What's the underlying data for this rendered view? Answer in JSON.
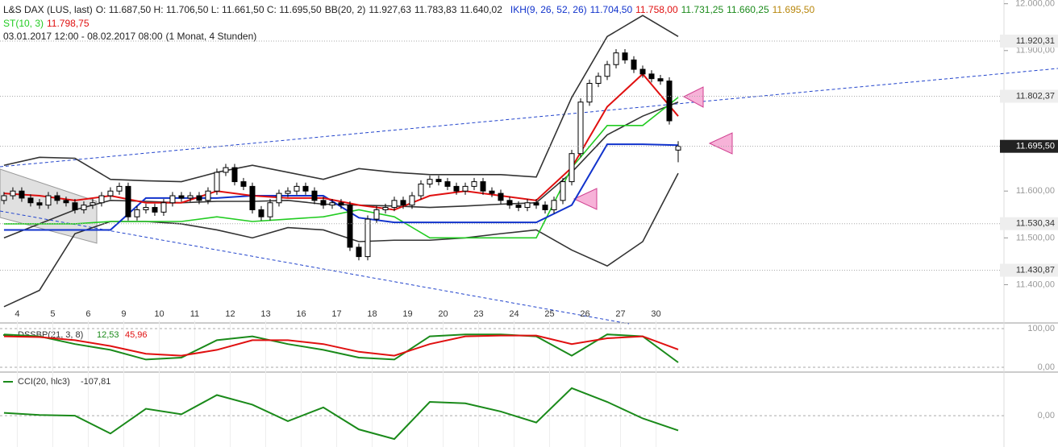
{
  "header": {
    "instrument": "L&S DAX (LUS, last)",
    "ohlc": "O: 11.687,50  H: 11.706,50  L: 11.661,50  C: 11.695,50",
    "bb_label": "BB(20, 2)",
    "bb_values": [
      "11.927,63",
      "11.783,83",
      "11.640,02"
    ],
    "ikh_label": "IKH(9, 26, 52, 26)",
    "ikh_values": [
      "11.704,50",
      "11.758,00",
      "11.731,25",
      "11.660,25",
      "11.695,50"
    ],
    "st_label": "ST(10, 3)",
    "st_value": "11.798,75",
    "range": "03.01.2017 12:00 - 08.02.2017 08:00",
    "period": "(1 Monat, 4 Stunden)"
  },
  "chart_data": [
    {
      "type": "candlestick",
      "xlim": [
        -0.45,
        112.27
      ],
      "ylim": [
        11320,
        12008
      ],
      "xticks": [
        {
          "value": 1.5,
          "label": "4"
        },
        {
          "value": 5.5,
          "label": "5"
        },
        {
          "value": 9.5,
          "label": "6"
        },
        {
          "value": 13.5,
          "label": "9"
        },
        {
          "value": 17.5,
          "label": "10"
        },
        {
          "value": 21.5,
          "label": "11"
        },
        {
          "value": 25.5,
          "label": "12"
        },
        {
          "value": 29.5,
          "label": "13"
        },
        {
          "value": 33.5,
          "label": "16"
        },
        {
          "value": 37.5,
          "label": "17"
        },
        {
          "value": 41.5,
          "label": "18"
        },
        {
          "value": 45.5,
          "label": "19"
        },
        {
          "value": 49.5,
          "label": "20"
        },
        {
          "value": 53.5,
          "label": "23"
        },
        {
          "value": 57.5,
          "label": "24"
        },
        {
          "value": 61.5,
          "label": "25"
        },
        {
          "value": 65.5,
          "label": "26"
        },
        {
          "value": 69.5,
          "label": "27"
        },
        {
          "value": 73.5,
          "label": "30"
        }
      ],
      "yticks": [
        {
          "value": 12000,
          "label": "12.000,00"
        },
        {
          "value": 11900,
          "label": "11.900,00"
        },
        {
          "value": 11600,
          "label": "11.600,00"
        },
        {
          "value": 11500,
          "label": "11.500,00"
        },
        {
          "value": 11400,
          "label": "11.400,00"
        }
      ],
      "price_labels": [
        {
          "value": 11920.31,
          "label": "11.920,31"
        },
        {
          "value": 11802.37,
          "label": "11.802,37"
        },
        {
          "value": 11695.5,
          "label": "11.695,50",
          "highlight": true
        },
        {
          "value": 11530.34,
          "label": "11.530,34"
        },
        {
          "value": 11430.87,
          "label": "11.430,87"
        }
      ],
      "open": [
        11580,
        11590,
        11600,
        11585,
        11575,
        11570,
        11590,
        11580,
        11575,
        11560,
        11570,
        11575,
        11590,
        11600,
        11610,
        11545,
        11560,
        11565,
        11555,
        11575,
        11590,
        11585,
        11590,
        11580,
        11600,
        11640,
        11650,
        11620,
        11610,
        11560,
        11545,
        11575,
        11595,
        11600,
        11610,
        11600,
        11580,
        11570,
        11575,
        11570,
        11480,
        11460,
        11540,
        11560,
        11565,
        11580,
        11570,
        11590,
        11615,
        11625,
        11620,
        11610,
        11600,
        11610,
        11620,
        11600,
        11595,
        11580,
        11570,
        11565,
        11575,
        11570,
        11560,
        11580,
        11620,
        11680,
        11790,
        11830,
        11845,
        11870,
        11895,
        11880,
        11860,
        11850,
        11840,
        11835,
        11687.5
      ],
      "high": [
        11598,
        11608,
        11608,
        11593,
        11583,
        11598,
        11598,
        11588,
        11583,
        11578,
        11583,
        11598,
        11608,
        11618,
        11618,
        11568,
        11573,
        11573,
        11583,
        11598,
        11598,
        11598,
        11598,
        11608,
        11648,
        11658,
        11658,
        11628,
        11618,
        11568,
        11583,
        11603,
        11608,
        11618,
        11618,
        11608,
        11588,
        11583,
        11583,
        11578,
        11488,
        11548,
        11568,
        11573,
        11588,
        11588,
        11598,
        11623,
        11633,
        11633,
        11628,
        11618,
        11618,
        11628,
        11628,
        11608,
        11603,
        11588,
        11578,
        11583,
        11583,
        11578,
        11588,
        11628,
        11688,
        11798,
        11838,
        11853,
        11878,
        11903,
        11903,
        11888,
        11868,
        11858,
        11848,
        11843,
        11706.5
      ],
      "low": [
        11572,
        11582,
        11577,
        11567,
        11562,
        11562,
        11572,
        11567,
        11552,
        11552,
        11562,
        11567,
        11582,
        11592,
        11537,
        11537,
        11552,
        11547,
        11547,
        11567,
        11577,
        11577,
        11572,
        11572,
        11592,
        11632,
        11612,
        11602,
        11552,
        11537,
        11537,
        11567,
        11587,
        11592,
        11592,
        11572,
        11562,
        11562,
        11562,
        11472,
        11452,
        11452,
        11532,
        11552,
        11557,
        11562,
        11562,
        11582,
        11607,
        11612,
        11602,
        11592,
        11592,
        11602,
        11592,
        11587,
        11572,
        11562,
        11557,
        11557,
        11562,
        11552,
        11552,
        11572,
        11612,
        11672,
        11782,
        11822,
        11837,
        11862,
        11872,
        11852,
        11842,
        11832,
        11827,
        11742,
        11661.5
      ],
      "close": [
        11590,
        11600,
        11585,
        11575,
        11570,
        11590,
        11580,
        11575,
        11560,
        11570,
        11575,
        11590,
        11600,
        11610,
        11545,
        11560,
        11565,
        11555,
        11575,
        11590,
        11585,
        11590,
        11580,
        11600,
        11640,
        11650,
        11620,
        11610,
        11560,
        11545,
        11575,
        11595,
        11600,
        11610,
        11600,
        11580,
        11570,
        11575,
        11570,
        11480,
        11460,
        11540,
        11560,
        11565,
        11580,
        11570,
        11590,
        11615,
        11625,
        11620,
        11610,
        11600,
        11610,
        11620,
        11600,
        11595,
        11580,
        11570,
        11565,
        11575,
        11570,
        11560,
        11580,
        11620,
        11680,
        11790,
        11830,
        11845,
        11870,
        11895,
        11880,
        11860,
        11850,
        11840,
        11835,
        11750,
        11695.5
      ],
      "series": [
        {
          "color": "#333333",
          "x": [
            0,
            4,
            8,
            12,
            16,
            20,
            24,
            28,
            32,
            36,
            40,
            44,
            48,
            52,
            56,
            60,
            64,
            68,
            72,
            76
          ],
          "values": [
            11655,
            11672,
            11670,
            11625,
            11622,
            11620,
            11640,
            11655,
            11640,
            11625,
            11648,
            11640,
            11635,
            11635,
            11635,
            11630,
            11800,
            11930,
            11975,
            11930
          ]
        },
        {
          "color": "#333333",
          "x": [
            0,
            4,
            8,
            12,
            16,
            20,
            24,
            28,
            32,
            36,
            40,
            44,
            48,
            52,
            56,
            60,
            64,
            68,
            72,
            76
          ],
          "values": [
            11500,
            11530,
            11560,
            11580,
            11578,
            11575,
            11578,
            11578,
            11580,
            11572,
            11570,
            11568,
            11565,
            11568,
            11572,
            11575,
            11640,
            11720,
            11760,
            11790
          ]
        },
        {
          "color": "#333333",
          "x": [
            0,
            4,
            8,
            12,
            16,
            20,
            24,
            28,
            32,
            36,
            40,
            44,
            48,
            52,
            56,
            60,
            64,
            68,
            72,
            76
          ],
          "values": [
            11353,
            11388,
            11509,
            11535,
            11535,
            11530,
            11517,
            11500,
            11522,
            11517,
            11492,
            11495,
            11495,
            11500,
            11509,
            11517,
            11474,
            11440,
            11492,
            11638
          ]
        },
        {
          "color": "#22cc22",
          "x": [
            0,
            4,
            8,
            12,
            16,
            20,
            24,
            28,
            32,
            36,
            40,
            44,
            48,
            52,
            56,
            60,
            64,
            68,
            72,
            76
          ],
          "values": [
            11530,
            11530,
            11530,
            11535,
            11535,
            11535,
            11545,
            11535,
            11540,
            11545,
            11560,
            11545,
            11500,
            11500,
            11500,
            11500,
            11650,
            11740,
            11740,
            11800
          ]
        },
        {
          "color": "#1133cc",
          "x": [
            0,
            4,
            8,
            12,
            16,
            20,
            24,
            28,
            32,
            36,
            40,
            44,
            48,
            52,
            56,
            60,
            64,
            68,
            72,
            76
          ],
          "values": [
            11517,
            11517,
            11517,
            11517,
            11585,
            11585,
            11585,
            11590,
            11590,
            11590,
            11543,
            11533,
            11533,
            11533,
            11533,
            11533,
            11570,
            11700,
            11700,
            11698
          ]
        },
        {
          "color": "#e01010",
          "x": [
            0,
            4,
            8,
            12,
            16,
            20,
            24,
            28,
            32,
            36,
            40,
            44,
            48,
            52,
            56,
            60,
            64,
            68,
            72,
            76
          ],
          "values": [
            11595,
            11590,
            11580,
            11590,
            11575,
            11575,
            11600,
            11590,
            11585,
            11585,
            11570,
            11560,
            11590,
            11600,
            11590,
            11580,
            11650,
            11780,
            11850,
            11760
          ]
        }
      ]
    },
    {
      "type": "line",
      "legend_label": "DSSBP(21, 3, 8)",
      "legend_values": [
        "12,53",
        "45,96"
      ],
      "ylim": [
        -8.3,
        110.4
      ],
      "yticks": [
        {
          "value": 0,
          "label": "0,00"
        },
        {
          "value": 100,
          "label": "100,00"
        }
      ],
      "series": [
        {
          "color": "#1a8a1a",
          "x": [
            0,
            4,
            8,
            12,
            16,
            20,
            24,
            28,
            32,
            36,
            40,
            44,
            48,
            52,
            56,
            60,
            64,
            68,
            72,
            76
          ],
          "values": [
            85,
            80,
            60,
            45,
            20,
            25,
            70,
            80,
            60,
            45,
            25,
            20,
            80,
            85,
            85,
            80,
            30,
            85,
            80,
            12.53
          ]
        },
        {
          "color": "#e01010",
          "x": [
            0,
            4,
            8,
            12,
            16,
            20,
            24,
            28,
            32,
            36,
            40,
            44,
            48,
            52,
            56,
            60,
            64,
            68,
            72,
            76
          ],
          "values": [
            80,
            78,
            70,
            55,
            35,
            30,
            45,
            70,
            70,
            60,
            40,
            30,
            60,
            80,
            82,
            82,
            60,
            75,
            80,
            45.96
          ]
        }
      ]
    },
    {
      "type": "line",
      "legend_label": "CCI(20, hlc3)",
      "legend_values": [
        "-107,81"
      ],
      "ylim": [
        -228,
        311
      ],
      "yticks": [
        {
          "value": 0,
          "label": "0,00"
        }
      ],
      "series": [
        {
          "color": "#1a8a1a",
          "x": [
            0,
            4,
            8,
            12,
            16,
            20,
            24,
            28,
            32,
            36,
            40,
            44,
            48,
            52,
            56,
            60,
            64,
            68,
            72,
            76
          ],
          "values": [
            20,
            5,
            0,
            -130,
            50,
            10,
            150,
            80,
            -40,
            60,
            -100,
            -170,
            100,
            90,
            30,
            -50,
            200,
            100,
            -20,
            -107.81
          ]
        }
      ]
    }
  ]
}
